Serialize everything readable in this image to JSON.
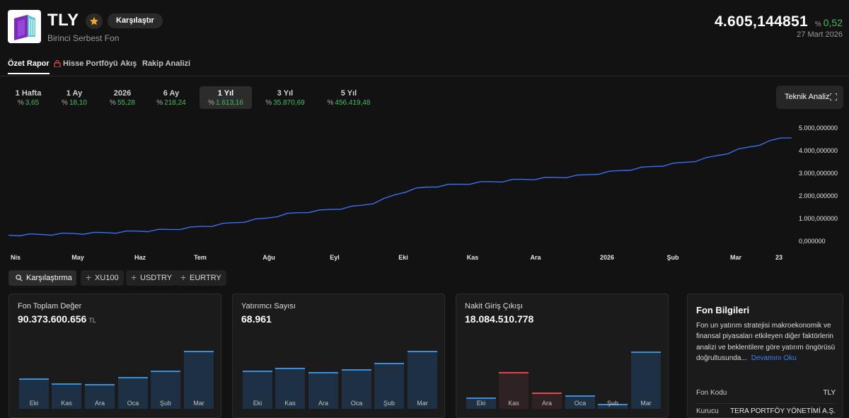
{
  "header": {
    "code": "TLY",
    "name": "Birinci Serbest Fon",
    "compare_label": "Karşılaştır",
    "price": "4.605,144851",
    "change_prefix": "%",
    "change_value": "0,52",
    "date": "27 Mart 2026",
    "colors": {
      "up": "#3fbf62",
      "logo_purple": "#7a2cb8",
      "logo_teal": "#55c7cf"
    }
  },
  "tabs": [
    {
      "label": "Özet Rapor",
      "active": true
    },
    {
      "label": "Hisse Portföyü",
      "locked": true
    },
    {
      "label": "Akış"
    },
    {
      "label": "Rakip Analizi"
    }
  ],
  "periods": [
    {
      "label": "1 Hafta",
      "prefix": "%",
      "value": "3,65"
    },
    {
      "label": "1 Ay",
      "prefix": "%",
      "value": "18,10"
    },
    {
      "label": "2026",
      "prefix": "%",
      "value": "55,28"
    },
    {
      "label": "6 Ay",
      "prefix": "%",
      "value": "218,24"
    },
    {
      "label": "1 Yıl",
      "prefix": "%",
      "value": "1.613,16",
      "active": true
    },
    {
      "label": "3 Yıl",
      "prefix": "%",
      "value": "35.870,69"
    },
    {
      "label": "5 Yıl",
      "prefix": "%",
      "value": "456.419,48"
    }
  ],
  "teknik_label": "Teknik Analiz",
  "chart_data": {
    "type": "line",
    "series": [
      {
        "name": "TLY",
        "color": "#3b6ff2",
        "values": [
          270,
          282,
          290,
          300,
          310,
          325,
          340,
          352,
          362,
          380,
          398,
          420,
          445,
          468,
          495,
          520,
          560,
          600,
          650,
          700,
          760,
          820,
          880,
          950,
          1020,
          1120,
          1200,
          1260,
          1310,
          1350,
          1400,
          1460,
          1520,
          1590,
          1700,
          1860,
          2050,
          2210,
          2320,
          2390,
          2440,
          2480,
          2520,
          2560,
          2600,
          2630,
          2660,
          2700,
          2730,
          2760,
          2790,
          2820,
          2850,
          2890,
          2940,
          3000,
          3060,
          3120,
          3180,
          3240,
          3300,
          3360,
          3420,
          3480,
          3560,
          3660,
          3780,
          3900,
          4040,
          4160,
          4280,
          4420,
          4560,
          4605
        ]
      }
    ],
    "y_ticks": [
      "5.000,000000",
      "4.000,000000",
      "3.000,000000",
      "2.000,000000",
      "1.000,000000",
      "0,000000"
    ],
    "ylim": [
      0,
      5000
    ],
    "x_ticks": [
      "Nis",
      "May",
      "Haz",
      "Tem",
      "Ağu",
      "Eyl",
      "Eki",
      "Kas",
      "Ara",
      "2026",
      "Şub",
      "Mar",
      "23"
    ]
  },
  "compare": {
    "main_label": "Karşılaştırma",
    "chips": [
      "XU100",
      "USDTRY",
      "EURTRY"
    ]
  },
  "cards": [
    {
      "title": "Fon Toplam Değer",
      "value": "90.373.600.656",
      "unit": "TL",
      "months": [
        "Eki",
        "Kas",
        "Ara",
        "Oca",
        "Şub",
        "Mar"
      ],
      "values": [
        47,
        39,
        38,
        49,
        59,
        89
      ],
      "directions": [
        "up",
        "up",
        "up",
        "up",
        "up",
        "up"
      ]
    },
    {
      "title": "Yatırımcı Sayısı",
      "value": "68.961",
      "months": [
        "Eki",
        "Kas",
        "Ara",
        "Oca",
        "Şub",
        "Mar"
      ],
      "values": [
        59,
        63,
        57,
        61,
        71,
        89
      ],
      "directions": [
        "up",
        "up",
        "up",
        "up",
        "up",
        "up"
      ]
    },
    {
      "title": "Nakit Giriş Çıkışı",
      "value": "18.084.510.778",
      "months": [
        "Eki",
        "Kas",
        "Ara",
        "Oca",
        "Şub",
        "Mar"
      ],
      "values": [
        17,
        56,
        25,
        21,
        8,
        88
      ],
      "directions": [
        "up",
        "down",
        "down",
        "up",
        "up",
        "up"
      ]
    }
  ],
  "info": {
    "title": "Fon Bilgileri",
    "description": "Fon un yatırım stratejisi makroekonomik ve finansal piyasaları etkileyen diğer faktörlerin analizi ve beklentilere göre yatırım öngörüsü doğrultusunda...",
    "more_label": "Devamını Oku",
    "rows": [
      {
        "label": "Fon Kodu",
        "value": "TLY"
      },
      {
        "label": "Kurucu",
        "value": "TERA PORTFÖY YÖNETİMİ A.Ş."
      }
    ]
  }
}
